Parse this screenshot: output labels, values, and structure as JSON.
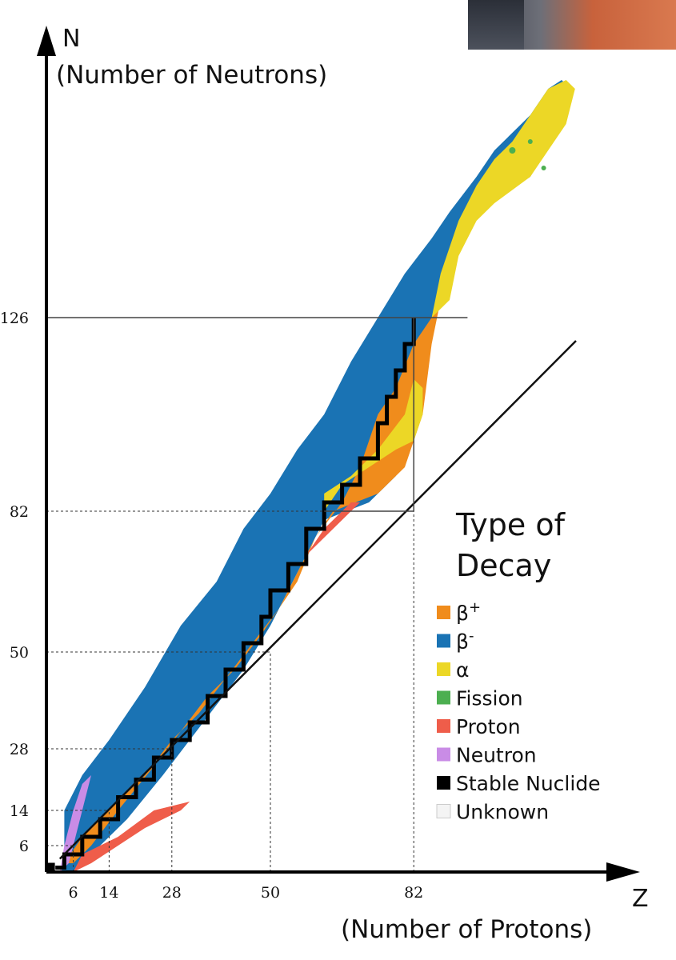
{
  "chart_data": {
    "type": "nuclide-chart",
    "y_axis": {
      "letter": "N",
      "label": "(Number of Neutrons)",
      "ticks": [
        "6",
        "14",
        "28",
        "50",
        "82",
        "126"
      ]
    },
    "x_axis": {
      "letter": "Z",
      "label": "(Number of Protons)",
      "ticks": [
        "6",
        "14",
        "28",
        "50",
        "82"
      ]
    },
    "xlim": [
      0,
      120
    ],
    "ylim": [
      0,
      180
    ],
    "magic_numbers": [
      6,
      14,
      28,
      50,
      82,
      126
    ],
    "reference_line": "N = Z",
    "legend": {
      "title_line1": "Type of",
      "title_line2": "Decay",
      "items": [
        {
          "label": "β",
          "sup": "+",
          "color": "#f08c1c"
        },
        {
          "label": "β",
          "sup": "-",
          "color": "#1a73b4"
        },
        {
          "label": "α",
          "color": "#ecd726"
        },
        {
          "label": "Fission",
          "color": "#4caf50"
        },
        {
          "label": "Proton",
          "color": "#ef5d4a"
        },
        {
          "label": "Neutron",
          "color": "#c98ce6"
        },
        {
          "label": "Stable Nuclide",
          "color": "#000000"
        },
        {
          "label": "Unknown",
          "color": "#f4f4f4"
        }
      ]
    },
    "region_colors": {
      "beta_minus": "#1a73b4",
      "beta_plus": "#f08c1c",
      "alpha": "#ecd726",
      "fission": "#4caf50",
      "proton": "#ef5d4a",
      "neutron": "#c98ce6",
      "stable": "#000000"
    }
  }
}
